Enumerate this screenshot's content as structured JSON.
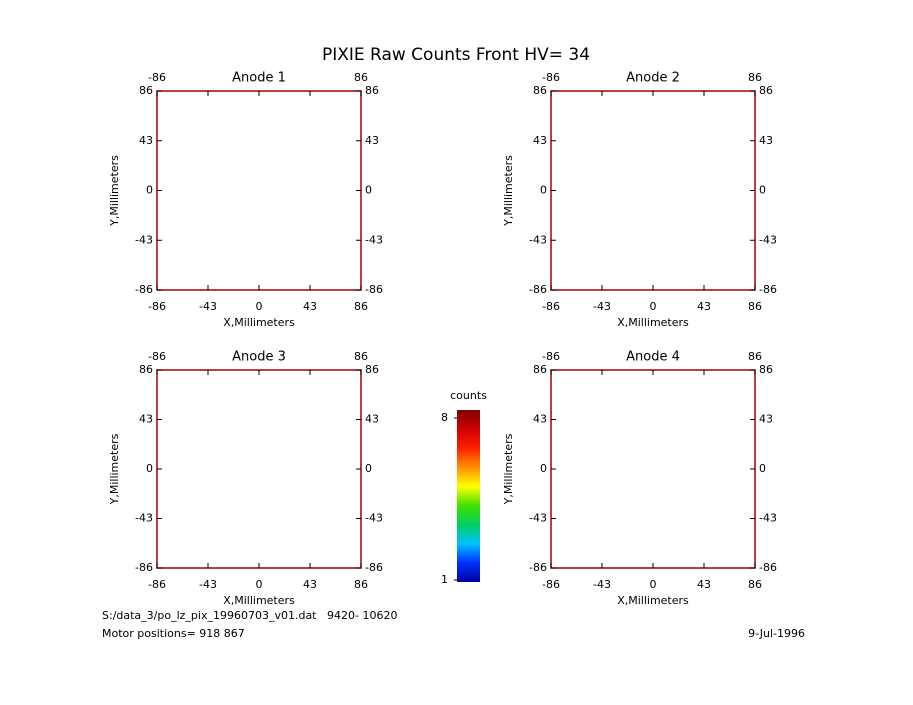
{
  "title": "PIXIE Raw Counts Front HV= 34",
  "chart_data": [
    {
      "type": "scatter",
      "title": "Anode 1",
      "x_label": "X,Millimeters",
      "y_label": "Y,Millimeters",
      "xlim": [
        -86,
        86
      ],
      "ylim": [
        -86,
        86
      ],
      "xticks": [
        -86,
        -43,
        0,
        43,
        86
      ],
      "yticks": [
        -86,
        -43,
        0,
        43,
        86
      ],
      "frame_color": "#a00000"
    },
    {
      "type": "scatter",
      "title": "Anode 2",
      "x_label": "X,Millimeters",
      "y_label": "Y,Millimeters",
      "xlim": [
        -86,
        86
      ],
      "ylim": [
        -86,
        86
      ],
      "xticks": [
        -86,
        -43,
        0,
        43,
        86
      ],
      "yticks": [
        -86,
        -43,
        0,
        43,
        86
      ],
      "frame_color": "#a00000"
    },
    {
      "type": "scatter",
      "title": "Anode 3",
      "x_label": "X,Millimeters",
      "y_label": "Y,Millimeters",
      "xlim": [
        -86,
        86
      ],
      "ylim": [
        -86,
        86
      ],
      "xticks": [
        -86,
        -43,
        0,
        43,
        86
      ],
      "yticks": [
        -86,
        -43,
        0,
        43,
        86
      ],
      "frame_color": "#a00000"
    },
    {
      "type": "scatter",
      "title": "Anode 4",
      "x_label": "X,Millimeters",
      "y_label": "Y,Millimeters",
      "xlim": [
        -86,
        86
      ],
      "ylim": [
        -86,
        86
      ],
      "xticks": [
        -86,
        -43,
        0,
        43,
        86
      ],
      "yticks": [
        -86,
        -43,
        0,
        43,
        86
      ],
      "frame_color": "#a00000"
    },
    {
      "type": "colorbar",
      "title": "counts",
      "ylim": [
        1,
        8
      ],
      "yticks": [
        1,
        8
      ],
      "colors": [
        "#0000a0",
        "#0030ff",
        "#00c0ff",
        "#00d060",
        "#40e000",
        "#ffff00",
        "#ff9000",
        "#ff2000",
        "#d00000",
        "#800000"
      ]
    }
  ],
  "footer": {
    "file": "S:/data_3/po_lz_pix_19960703_v01.dat   9420- 10620",
    "motor": "Motor positions= 918 867",
    "date": "9-Jul-1996"
  }
}
